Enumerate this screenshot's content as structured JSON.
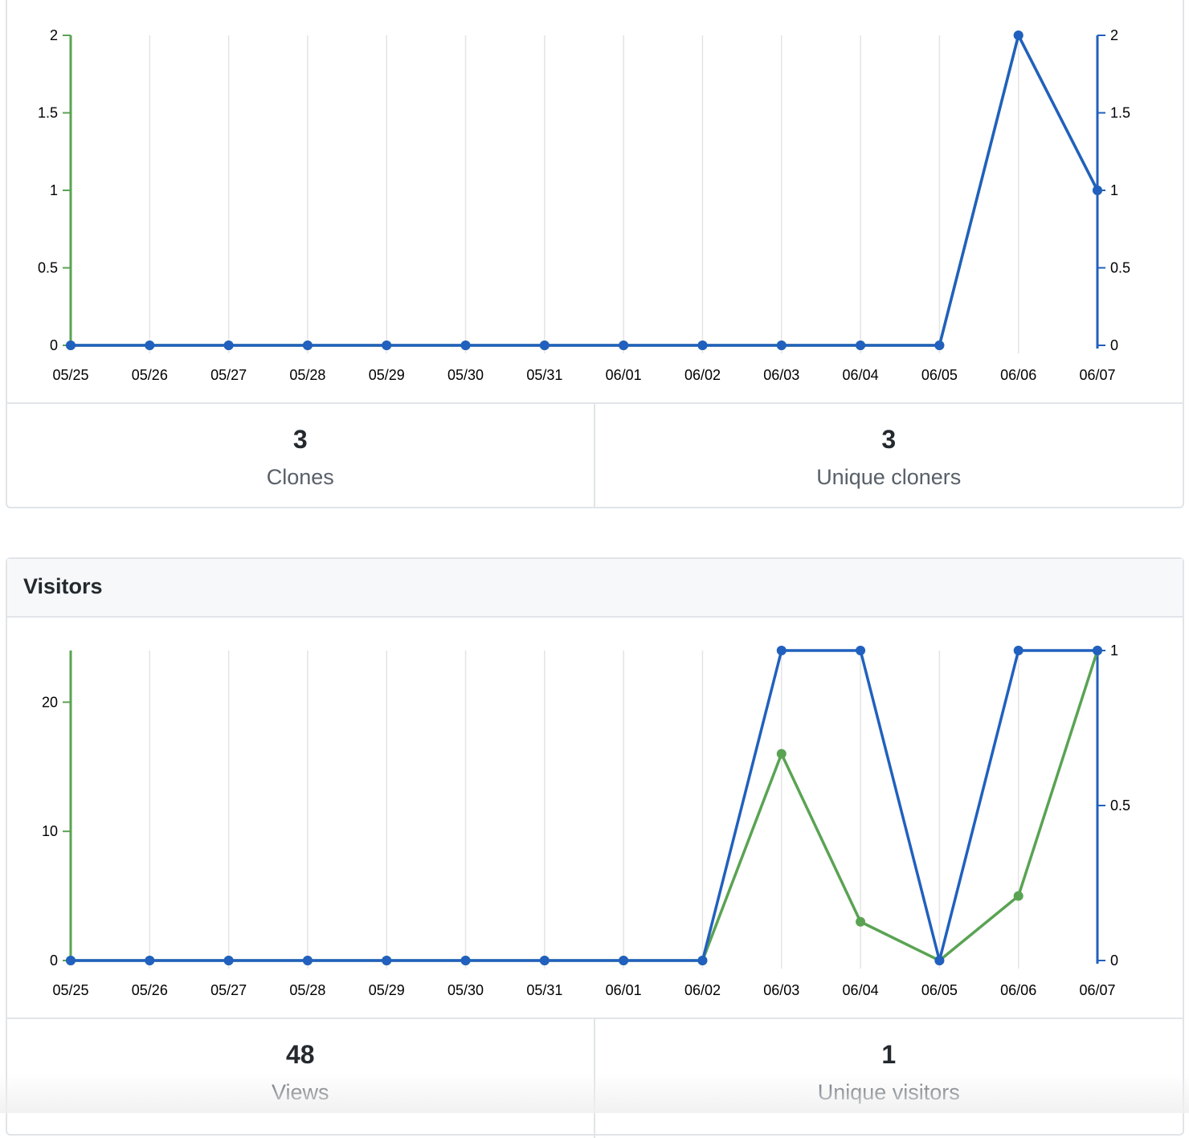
{
  "clones": {
    "stats": {
      "total_value": "3",
      "total_label": "Clones",
      "unique_value": "3",
      "unique_label": "Unique cloners"
    }
  },
  "visitors": {
    "title": "Visitors",
    "stats": {
      "total_value": "48",
      "total_label": "Views",
      "unique_value": "1",
      "unique_label": "Unique visitors"
    }
  },
  "colors": {
    "total_series": "#5aa353",
    "unique_series": "#2160be",
    "grid": "#e4e4e4"
  },
  "chart_data": [
    {
      "type": "line",
      "title": "",
      "x": [
        "05/25",
        "05/26",
        "05/27",
        "05/28",
        "05/29",
        "05/30",
        "05/31",
        "06/01",
        "06/02",
        "06/03",
        "06/04",
        "06/05",
        "06/06",
        "06/07"
      ],
      "series": [
        {
          "name": "Clones",
          "axis": "left",
          "color": "#5aa353",
          "values": [
            0,
            0,
            0,
            0,
            0,
            0,
            0,
            0,
            0,
            0,
            0,
            0,
            2,
            1
          ]
        },
        {
          "name": "Unique cloners",
          "axis": "right",
          "color": "#2160be",
          "values": [
            0,
            0,
            0,
            0,
            0,
            0,
            0,
            0,
            0,
            0,
            0,
            0,
            2,
            1
          ]
        }
      ],
      "y_left": {
        "range": [
          0,
          2
        ],
        "ticks": [
          "0",
          "0.5",
          "1",
          "1.5",
          "2"
        ],
        "tick_values": [
          0,
          0.5,
          1,
          1.5,
          2
        ]
      },
      "y_right": {
        "range": [
          0,
          2
        ],
        "ticks": [
          "0",
          "0.5",
          "1",
          "1.5",
          "2"
        ],
        "tick_values": [
          0,
          0.5,
          1,
          1.5,
          2
        ]
      },
      "grid": true
    },
    {
      "type": "line",
      "title": "",
      "x": [
        "05/25",
        "05/26",
        "05/27",
        "05/28",
        "05/29",
        "05/30",
        "05/31",
        "06/01",
        "06/02",
        "06/03",
        "06/04",
        "06/05",
        "06/06",
        "06/07"
      ],
      "series": [
        {
          "name": "Views",
          "axis": "left",
          "color": "#5aa353",
          "values": [
            0,
            0,
            0,
            0,
            0,
            0,
            0,
            0,
            0,
            16,
            3,
            0,
            5,
            24
          ]
        },
        {
          "name": "Unique visitors",
          "axis": "right",
          "color": "#2160be",
          "values": [
            0,
            0,
            0,
            0,
            0,
            0,
            0,
            0,
            0,
            1,
            1,
            0,
            1,
            1
          ]
        }
      ],
      "y_left": {
        "range": [
          0,
          24
        ],
        "ticks": [
          "0",
          "10",
          "20"
        ],
        "tick_values": [
          0,
          10,
          20
        ]
      },
      "y_right": {
        "range": [
          0,
          1
        ],
        "ticks": [
          "0",
          "0.5",
          "1"
        ],
        "tick_values": [
          0,
          0.5,
          1
        ]
      },
      "grid": true
    }
  ]
}
